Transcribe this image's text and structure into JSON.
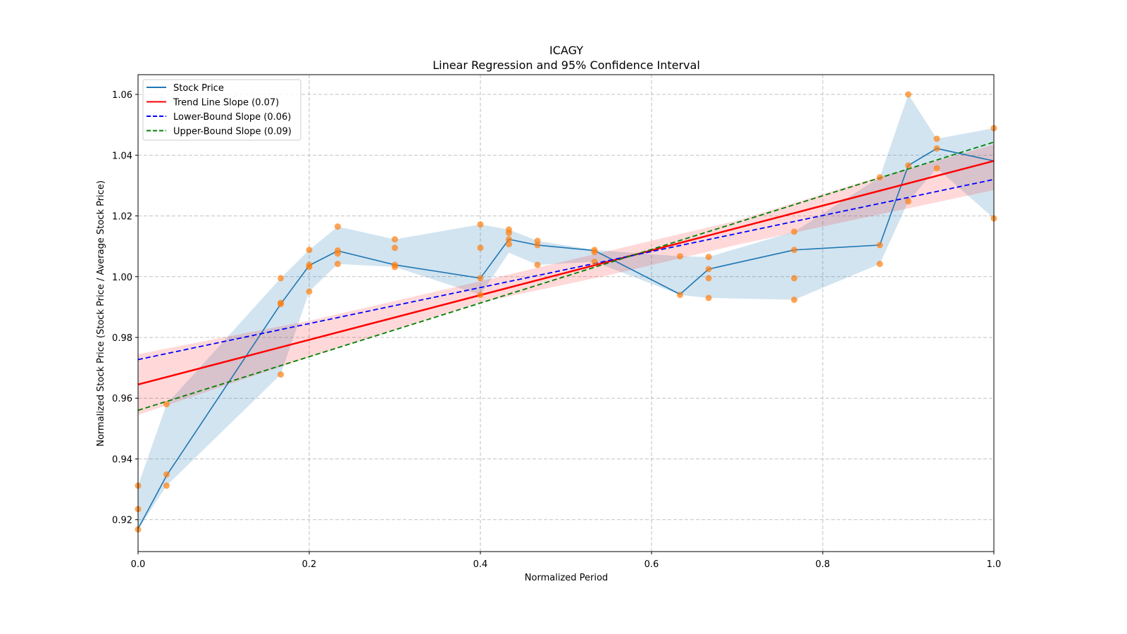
{
  "chart_data": {
    "type": "line",
    "title": "ICAGY",
    "subtitle": "Linear Regression and 95% Confidence Interval",
    "xlabel": "Normalized Period",
    "ylabel": "Normalized Stock Price (Stock Price / Average Stock Price)",
    "xlim": [
      0.0,
      1.0
    ],
    "ylim": [
      0.9095,
      1.0665
    ],
    "xticks": [
      0.0,
      0.2,
      0.4,
      0.6,
      0.8,
      1.0
    ],
    "xtick_labels": [
      "0.0",
      "0.2",
      "0.4",
      "0.6",
      "0.8",
      "1.0"
    ],
    "yticks": [
      0.92,
      0.94,
      0.96,
      0.98,
      1.0,
      1.02,
      1.04,
      1.06
    ],
    "ytick_labels": [
      "0.92",
      "0.94",
      "0.96",
      "0.98",
      "1.00",
      "1.02",
      "1.04",
      "1.06"
    ],
    "grid": true,
    "legend_position": "top-left",
    "legend": [
      {
        "label": "Stock Price",
        "color": "#1f77b4",
        "style": "solid"
      },
      {
        "label": "Trend Line Slope (0.07)",
        "color": "#ff0000",
        "style": "solid"
      },
      {
        "label": "Lower-Bound Slope (0.06)",
        "color": "#0000ff",
        "style": "dashed"
      },
      {
        "label": "Upper-Bound Slope (0.09)",
        "color": "#008000",
        "style": "dashed"
      }
    ],
    "stock_price": {
      "name": "Stock Price",
      "color": "#1f77b4",
      "x": [
        0.0,
        0.0333,
        0.1667,
        0.2,
        0.2333,
        0.3,
        0.4,
        0.4333,
        0.4667,
        0.5333,
        0.6333,
        0.6667,
        0.7667,
        0.8667,
        0.9,
        0.9333,
        1.0
      ],
      "y": [
        0.917,
        0.9345,
        0.991,
        1.0037,
        1.0085,
        1.0039,
        0.9995,
        1.0123,
        1.0104,
        1.0086,
        0.9942,
        1.0025,
        1.0088,
        1.0104,
        1.0366,
        1.0422,
        1.0381
      ],
      "band_low": [
        0.9168,
        0.9312,
        0.9678,
        0.9951,
        1.0042,
        1.0032,
        0.994,
        1.0079,
        1.0039,
        1.0049,
        0.994,
        0.993,
        0.9924,
        1.0042,
        1.0248,
        1.0357,
        1.0192
      ],
      "band_high": [
        0.9312,
        0.958,
        0.9995,
        1.0088,
        1.0165,
        1.0123,
        1.0172,
        1.0155,
        1.0118,
        1.0088,
        1.0067,
        1.0065,
        1.0148,
        1.0327,
        1.06,
        1.0454,
        1.0489
      ],
      "band_color": "#1f77b4"
    },
    "scatter": {
      "color": "#ff7f0e",
      "points": [
        [
          0.0,
          0.9312
        ],
        [
          0.0,
          0.9235
        ],
        [
          0.0,
          0.9168
        ],
        [
          0.0333,
          0.958
        ],
        [
          0.0333,
          0.9349
        ],
        [
          0.0333,
          0.9312
        ],
        [
          0.1667,
          0.9995
        ],
        [
          0.1667,
          0.9914
        ],
        [
          0.1667,
          0.991
        ],
        [
          0.1667,
          0.9678
        ],
        [
          0.2,
          1.0088
        ],
        [
          0.2,
          1.0039
        ],
        [
          0.2,
          1.0032
        ],
        [
          0.2,
          0.9951
        ],
        [
          0.2333,
          1.0165
        ],
        [
          0.2333,
          1.0086
        ],
        [
          0.2333,
          1.0076
        ],
        [
          0.2333,
          1.0042
        ],
        [
          0.3,
          1.0123
        ],
        [
          0.3,
          1.0095
        ],
        [
          0.3,
          1.0039
        ],
        [
          0.3,
          1.0032
        ],
        [
          0.4,
          1.0172
        ],
        [
          0.4,
          1.0095
        ],
        [
          0.4,
          0.9995
        ],
        [
          0.4,
          0.994
        ],
        [
          0.4333,
          1.0155
        ],
        [
          0.4333,
          1.0144
        ],
        [
          0.4333,
          1.0123
        ],
        [
          0.4333,
          1.0107
        ],
        [
          0.4667,
          1.0118
        ],
        [
          0.4667,
          1.0104
        ],
        [
          0.4667,
          1.0039
        ],
        [
          0.5333,
          1.0088
        ],
        [
          0.5333,
          1.0081
        ],
        [
          0.5333,
          1.0049
        ],
        [
          0.6333,
          1.0067
        ],
        [
          0.6333,
          0.994
        ],
        [
          0.6667,
          1.0065
        ],
        [
          0.6667,
          1.0025
        ],
        [
          0.6667,
          0.9995
        ],
        [
          0.6667,
          0.993
        ],
        [
          0.7667,
          1.0148
        ],
        [
          0.7667,
          1.0088
        ],
        [
          0.7667,
          0.9995
        ],
        [
          0.7667,
          0.9924
        ],
        [
          0.8667,
          1.0327
        ],
        [
          0.8667,
          1.0104
        ],
        [
          0.8667,
          1.0042
        ],
        [
          0.9,
          1.06
        ],
        [
          0.9,
          1.0366
        ],
        [
          0.9,
          1.0248
        ],
        [
          0.9333,
          1.0454
        ],
        [
          0.9333,
          1.0422
        ],
        [
          0.9333,
          1.0357
        ],
        [
          1.0,
          1.0489
        ],
        [
          1.0,
          1.0192
        ]
      ]
    },
    "trend_line": {
      "name": "Trend Line Slope (0.07)",
      "slope": 0.07,
      "x": [
        0.0,
        1.0
      ],
      "y": [
        0.9645,
        1.0381
      ],
      "color": "#ff0000"
    },
    "lower_bound": {
      "name": "Lower-Bound Slope (0.06)",
      "slope": 0.06,
      "x": [
        0.0,
        1.0
      ],
      "y": [
        0.9727,
        1.032
      ],
      "color": "#0000ff"
    },
    "upper_bound": {
      "name": "Upper-Bound Slope (0.09)",
      "slope": 0.09,
      "x": [
        0.0,
        1.0
      ],
      "y": [
        0.956,
        1.0443
      ],
      "color": "#008000"
    },
    "confidence_band": {
      "color": "#ff0000",
      "x": [
        0.0,
        0.2,
        0.4,
        0.55,
        0.7,
        0.85,
        1.0
      ],
      "low": [
        0.9545,
        0.9735,
        0.9915,
        1.0005,
        1.0105,
        1.0195,
        1.0285
      ],
      "high": [
        0.9745,
        0.9855,
        0.9985,
        1.0085,
        1.0185,
        1.0315,
        1.0435
      ]
    }
  }
}
